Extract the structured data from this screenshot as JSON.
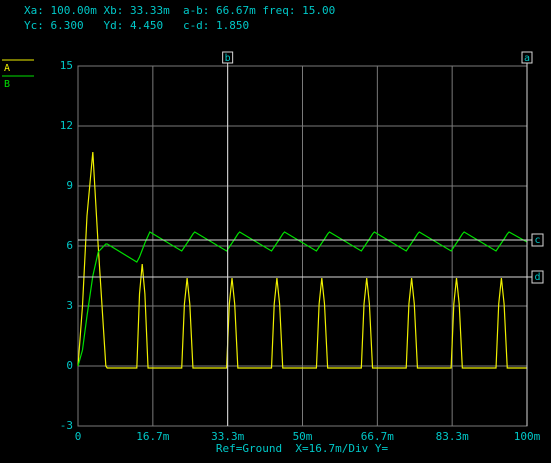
{
  "chart_data": {
    "type": "line",
    "readout": [
      "Xa: 100.00m Xb: 33.33m  a-b: 66.67m freq: 15.00",
      "Yc: 6.300   Yd: 4.450   c-d: 1.850"
    ],
    "x_label": "Ref=Ground  X=16.7m/Div Y=",
    "xlim": [
      0,
      0.1
    ],
    "ylim": [
      -3,
      15
    ],
    "xticks": [
      0,
      {
        "value": 0.01667,
        "label": "16.7m"
      },
      {
        "value": 0.03333,
        "label": "33.3m"
      },
      {
        "value": 0.05,
        "label": "50m"
      },
      {
        "value": 0.06667,
        "label": "66.7m"
      },
      {
        "value": 0.08333,
        "label": "83.3m"
      },
      {
        "value": 0.1,
        "label": "100m"
      }
    ],
    "yticks": [
      -3,
      0,
      3,
      6,
      9,
      12,
      15
    ],
    "grid": true,
    "legend": "top-left",
    "cursors": [
      {
        "name": "b",
        "axis": "x",
        "value": 0.03333
      },
      {
        "name": "a",
        "axis": "x",
        "value": 0.1
      },
      {
        "name": "c",
        "axis": "y",
        "value": 6.3
      },
      {
        "name": "d",
        "axis": "y",
        "value": 4.45
      }
    ],
    "x": [
      0,
      0.001,
      0.002,
      0.0033,
      0.0045,
      0.0062,
      0.0065,
      0.0131,
      0.0137,
      0.0143,
      0.0149,
      0.0156,
      0.016,
      0.0231,
      0.0237,
      0.0243,
      0.0249,
      0.0256,
      0.026,
      0.0331,
      0.0337,
      0.0343,
      0.0349,
      0.0356,
      0.036,
      0.0431,
      0.0437,
      0.0443,
      0.0449,
      0.0456,
      0.046,
      0.0531,
      0.0537,
      0.0543,
      0.0549,
      0.0556,
      0.056,
      0.0631,
      0.0637,
      0.0643,
      0.0649,
      0.0656,
      0.066,
      0.0731,
      0.0737,
      0.0743,
      0.0749,
      0.0756,
      0.076,
      0.0831,
      0.0837,
      0.0843,
      0.0849,
      0.0856,
      0.086,
      0.0931,
      0.0937,
      0.0943,
      0.0949,
      0.0956,
      0.096,
      0.1
    ],
    "series": [
      {
        "name": "A",
        "color": "#f0f000",
        "values": [
          0,
          3,
          7.5,
          10.7,
          6,
          0,
          -0.1,
          -0.1,
          3.6,
          5.1,
          3.6,
          -0.1,
          -0.1,
          -0.1,
          3.1,
          4.4,
          3.1,
          -0.1,
          -0.1,
          -0.1,
          3.1,
          4.4,
          3.1,
          -0.1,
          -0.1,
          -0.1,
          3.1,
          4.4,
          3.1,
          -0.1,
          -0.1,
          -0.1,
          3.1,
          4.4,
          3.1,
          -0.1,
          -0.1,
          -0.1,
          3.1,
          4.4,
          3.1,
          -0.1,
          -0.1,
          -0.1,
          3.1,
          4.4,
          3.1,
          -0.1,
          -0.1,
          -0.1,
          3.1,
          4.4,
          3.1,
          -0.1,
          -0.1,
          -0.1,
          3.1,
          4.4,
          3.1,
          -0.1,
          -0.1,
          -0.1
        ]
      },
      {
        "name": "B",
        "color": "#00e000",
        "values": [
          0,
          0.8,
          2.5,
          4.5,
          5.7,
          6.1,
          6.1,
          5.2,
          5.45,
          5.8,
          6.15,
          6.5,
          6.7,
          5.75,
          5.95,
          6.15,
          6.35,
          6.6,
          6.7,
          5.75,
          5.95,
          6.15,
          6.35,
          6.6,
          6.7,
          5.75,
          5.95,
          6.15,
          6.35,
          6.6,
          6.7,
          5.75,
          5.95,
          6.15,
          6.35,
          6.6,
          6.7,
          5.75,
          5.95,
          6.15,
          6.35,
          6.6,
          6.7,
          5.75,
          5.95,
          6.15,
          6.35,
          6.6,
          6.7,
          5.75,
          5.95,
          6.15,
          6.35,
          6.6,
          6.7,
          5.75,
          5.95,
          6.15,
          6.35,
          6.6,
          6.7,
          6.2
        ]
      }
    ]
  }
}
